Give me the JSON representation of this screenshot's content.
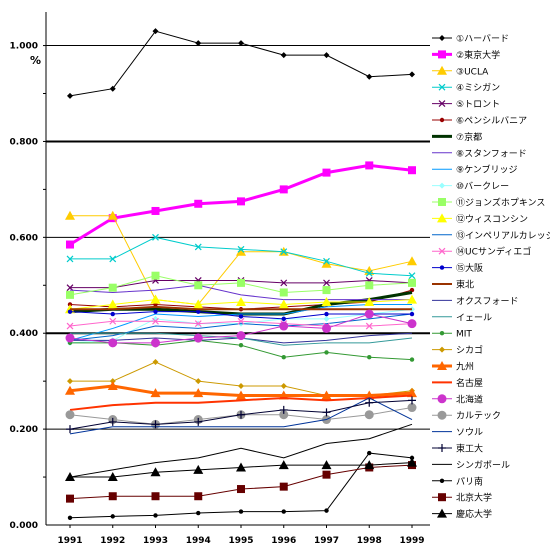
{
  "chart_data": {
    "type": "line",
    "title": "",
    "xlabel": "",
    "ylabel": "",
    "unit_label": "%",
    "x": [
      "1991",
      "1992",
      "1993",
      "1994",
      "1995",
      "1996",
      "1997",
      "1998",
      "1999"
    ],
    "ylim": [
      0,
      1.07
    ],
    "y_ticks": [
      "0.000",
      "0.200",
      "0.400",
      "0.600",
      "0.800",
      "1.000"
    ],
    "grid": "horizontal major lines at 0.200 intervals",
    "legend_position": "right",
    "series": [
      {
        "name": "①ハーバード",
        "color": "#000000",
        "marker": "diamond",
        "width": 1,
        "values": [
          0.895,
          0.91,
          1.03,
          1.005,
          1.005,
          0.98,
          0.98,
          0.935,
          0.94
        ]
      },
      {
        "name": "②東京大学",
        "color": "#ff00ff",
        "marker": "square",
        "width": 3,
        "values": [
          0.585,
          0.64,
          0.655,
          0.67,
          0.675,
          0.7,
          0.735,
          0.75,
          0.74
        ]
      },
      {
        "name": "③UCLA",
        "color": "#ffcc00",
        "marker": "triangle",
        "width": 1,
        "values": [
          0.645,
          0.645,
          0.47,
          0.46,
          0.57,
          0.57,
          0.545,
          0.53,
          0.55
        ]
      },
      {
        "name": "④ミシガン",
        "color": "#00cccc",
        "marker": "x",
        "width": 1,
        "values": [
          0.555,
          0.555,
          0.6,
          0.58,
          0.575,
          0.57,
          0.55,
          0.525,
          0.52
        ]
      },
      {
        "name": "⑤トロント",
        "color": "#660066",
        "marker": "x",
        "width": 1,
        "values": [
          0.495,
          0.495,
          0.51,
          0.51,
          0.51,
          0.505,
          0.505,
          0.51,
          0.505
        ]
      },
      {
        "name": "⑥ペンシルバニア",
        "color": "#990000",
        "marker": "dot",
        "width": 1,
        "values": [
          0.46,
          0.455,
          0.46,
          0.455,
          0.45,
          0.455,
          0.46,
          0.465,
          0.49
        ]
      },
      {
        "name": "⑦京都",
        "color": "#003300",
        "marker": "none",
        "width": 3,
        "values": [
          0.445,
          0.45,
          0.45,
          0.445,
          0.44,
          0.44,
          0.46,
          0.47,
          0.485
        ]
      },
      {
        "name": "⑧スタンフォード",
        "color": "#6633cc",
        "marker": "none",
        "width": 1,
        "values": [
          0.49,
          0.485,
          0.49,
          0.5,
          0.48,
          0.47,
          0.47,
          0.47,
          0.47
        ]
      },
      {
        "name": "⑨ケンブリッジ",
        "color": "#0099ff",
        "marker": "none",
        "width": 1,
        "values": [
          0.385,
          0.41,
          0.44,
          0.435,
          0.44,
          0.44,
          0.455,
          0.46,
          0.46
        ]
      },
      {
        "name": "⑩バークレー",
        "color": "#99ffff",
        "marker": "diamond",
        "width": 1,
        "values": [
          0.38,
          0.385,
          0.43,
          0.42,
          0.42,
          0.43,
          0.43,
          0.44,
          0.45
        ]
      },
      {
        "name": "⑪ジョンズホプキンス",
        "color": "#99ff66",
        "marker": "square",
        "width": 1,
        "values": [
          0.48,
          0.495,
          0.52,
          0.5,
          0.505,
          0.485,
          0.49,
          0.5,
          0.505
        ]
      },
      {
        "name": "⑫ウィスコンシン",
        "color": "#ffff00",
        "marker": "triangle",
        "width": 1,
        "values": [
          0.45,
          0.46,
          0.47,
          0.46,
          0.465,
          0.46,
          0.465,
          0.465,
          0.47
        ]
      },
      {
        "name": "⑬インペリアルカレッジ",
        "color": "#0066cc",
        "marker": "none",
        "width": 1,
        "values": [
          0.385,
          0.395,
          0.415,
          0.41,
          0.42,
          0.415,
          0.42,
          0.43,
          0.44
        ]
      },
      {
        "name": "⑭UCサンディエゴ",
        "color": "#ff66cc",
        "marker": "x",
        "width": 1,
        "values": [
          0.415,
          0.425,
          0.425,
          0.42,
          0.425,
          0.42,
          0.415,
          0.415,
          0.42
        ]
      },
      {
        "name": "⑮大阪",
        "color": "#0000cc",
        "marker": "dot",
        "width": 1,
        "values": [
          0.445,
          0.44,
          0.445,
          0.445,
          0.435,
          0.43,
          0.44,
          0.44,
          0.44
        ]
      },
      {
        "name": "東北",
        "color": "#993300",
        "marker": "none",
        "width": 2,
        "values": [
          0.45,
          0.45,
          0.455,
          0.45,
          0.45,
          0.45,
          0.45,
          0.45,
          0.45
        ]
      },
      {
        "name": "オクスフォード",
        "color": "#333399",
        "marker": "none",
        "width": 1,
        "values": [
          0.385,
          0.385,
          0.39,
          0.385,
          0.39,
          0.38,
          0.385,
          0.395,
          0.4
        ]
      },
      {
        "name": "イェール",
        "color": "#339999",
        "marker": "none",
        "width": 1,
        "values": [
          0.4,
          0.4,
          0.4,
          0.395,
          0.39,
          0.375,
          0.38,
          0.38,
          0.39
        ]
      },
      {
        "name": "MIT",
        "color": "#339933",
        "marker": "dot",
        "width": 1,
        "values": [
          0.38,
          0.38,
          0.375,
          0.385,
          0.375,
          0.35,
          0.36,
          0.35,
          0.345
        ]
      },
      {
        "name": "シカゴ",
        "color": "#cc9900",
        "marker": "diamond",
        "width": 1,
        "values": [
          0.3,
          0.3,
          0.34,
          0.3,
          0.29,
          0.29,
          0.27,
          0.27,
          0.28
        ]
      },
      {
        "name": "九州",
        "color": "#ff6600",
        "marker": "triangle",
        "width": 3,
        "values": [
          0.28,
          0.29,
          0.275,
          0.275,
          0.27,
          0.27,
          0.27,
          0.27,
          0.275
        ]
      },
      {
        "name": "名古屋",
        "color": "#ff3300",
        "marker": "none",
        "width": 2,
        "values": [
          0.24,
          0.25,
          0.255,
          0.255,
          0.26,
          0.265,
          0.26,
          0.265,
          0.27
        ]
      },
      {
        "name": "北海道",
        "color": "#cc33cc",
        "marker": "bigdot",
        "width": 1,
        "values": [
          0.39,
          0.38,
          0.38,
          0.39,
          0.395,
          0.415,
          0.41,
          0.44,
          0.42
        ]
      },
      {
        "name": "カルテック",
        "color": "#999999",
        "marker": "bigdot",
        "width": 1,
        "values": [
          0.23,
          0.22,
          0.21,
          0.22,
          0.23,
          0.23,
          0.22,
          0.23,
          0.245
        ]
      },
      {
        "name": "ソウル",
        "color": "#003399",
        "marker": "none",
        "width": 1,
        "values": [
          0.19,
          0.205,
          0.205,
          0.205,
          0.205,
          0.205,
          0.22,
          0.265,
          0.22
        ]
      },
      {
        "name": "東工大",
        "color": "#000033",
        "marker": "cross",
        "width": 1,
        "values": [
          0.2,
          0.215,
          0.21,
          0.215,
          0.23,
          0.24,
          0.235,
          0.255,
          0.26
        ]
      },
      {
        "name": "シンガポール",
        "color": "#000000",
        "marker": "none",
        "width": 1,
        "values": [
          0.1,
          0.115,
          0.13,
          0.14,
          0.16,
          0.14,
          0.17,
          0.18,
          0.21
        ]
      },
      {
        "name": "パリ南",
        "color": "#000000",
        "marker": "dot",
        "width": 1,
        "values": [
          0.015,
          0.018,
          0.02,
          0.025,
          0.028,
          0.028,
          0.03,
          0.15,
          0.14
        ]
      },
      {
        "name": "北京大学",
        "color": "#660000",
        "marker": "square",
        "width": 1,
        "values": [
          0.055,
          0.06,
          0.06,
          0.06,
          0.075,
          0.08,
          0.105,
          0.12,
          0.125
        ]
      },
      {
        "name": "慶応大学",
        "color": "#000000",
        "marker": "triangle",
        "width": 1,
        "values": [
          0.1,
          0.1,
          0.11,
          0.115,
          0.12,
          0.125,
          0.125,
          0.125,
          0.13
        ]
      }
    ]
  }
}
